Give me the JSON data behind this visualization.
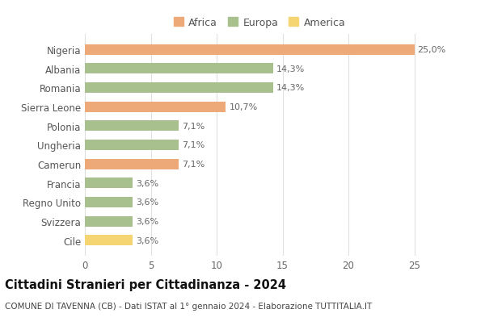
{
  "categories": [
    "Nigeria",
    "Albania",
    "Romania",
    "Sierra Leone",
    "Polonia",
    "Ungheria",
    "Camerun",
    "Francia",
    "Regno Unito",
    "Svizzera",
    "Cile"
  ],
  "values": [
    25.0,
    14.3,
    14.3,
    10.7,
    7.1,
    7.1,
    7.1,
    3.6,
    3.6,
    3.6,
    3.6
  ],
  "labels": [
    "25,0%",
    "14,3%",
    "14,3%",
    "10,7%",
    "7,1%",
    "7,1%",
    "7,1%",
    "3,6%",
    "3,6%",
    "3,6%",
    "3,6%"
  ],
  "continents": [
    "Africa",
    "Europa",
    "Europa",
    "Africa",
    "Europa",
    "Europa",
    "Africa",
    "Europa",
    "Europa",
    "Europa",
    "America"
  ],
  "colors": {
    "Africa": "#EDAA78",
    "Europa": "#A8BF8E",
    "America": "#F5D472"
  },
  "legend_order": [
    "Africa",
    "Europa",
    "America"
  ],
  "title": "Cittadini Stranieri per Cittadinanza - 2024",
  "subtitle": "COMUNE DI TAVENNA (CB) - Dati ISTAT al 1° gennaio 2024 - Elaborazione TUTTITALIA.IT",
  "xlim": [
    0,
    26.5
  ],
  "xticks": [
    0,
    5,
    10,
    15,
    20,
    25
  ],
  "background_color": "#ffffff",
  "grid_color": "#e0e0e0",
  "bar_height": 0.55,
  "title_fontsize": 10.5,
  "subtitle_fontsize": 7.5,
  "label_fontsize": 8,
  "tick_fontsize": 8.5,
  "legend_fontsize": 9
}
